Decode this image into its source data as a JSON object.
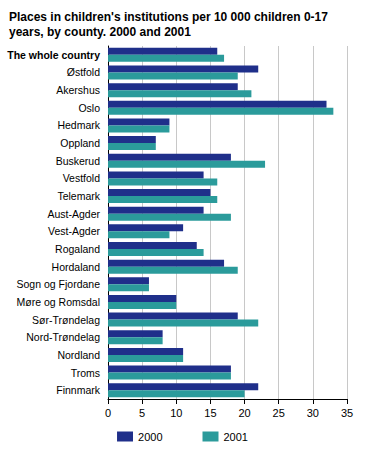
{
  "chart_data": {
    "type": "bar",
    "orientation": "horizontal",
    "title": "Places in children's institutions per 10 000 children 0-17 years, by county. 2000 and 2001",
    "categories": [
      "The whole country",
      "Østfold",
      "Akershus",
      "Oslo",
      "Hedmark",
      "Oppland",
      "Buskerud",
      "Vestfold",
      "Telemark",
      "Aust-Agder",
      "Vest-Agder",
      "Rogaland",
      "Hordaland",
      "Sogn og Fjordane",
      "Møre og Romsdal",
      "Sør-Trøndelag",
      "Nord-Trøndelag",
      "Nordland",
      "Troms",
      "Finnmark"
    ],
    "series": [
      {
        "name": "2000",
        "color": "#1f2f8a",
        "values": [
          16,
          22,
          19,
          32,
          9,
          7,
          18,
          14,
          15,
          14,
          11,
          13,
          17,
          6,
          10,
          19,
          8,
          11,
          18,
          22
        ]
      },
      {
        "name": "2001",
        "color": "#2b9b9b",
        "values": [
          17,
          19,
          21,
          33,
          9,
          7,
          23,
          16,
          16,
          18,
          9,
          14,
          19,
          6,
          10,
          22,
          8,
          11,
          18,
          20
        ]
      }
    ],
    "xlim": [
      0,
      35
    ],
    "xticks": [
      0,
      5,
      10,
      15,
      20,
      25,
      30,
      35
    ],
    "grid": true,
    "legend": "bottom"
  }
}
